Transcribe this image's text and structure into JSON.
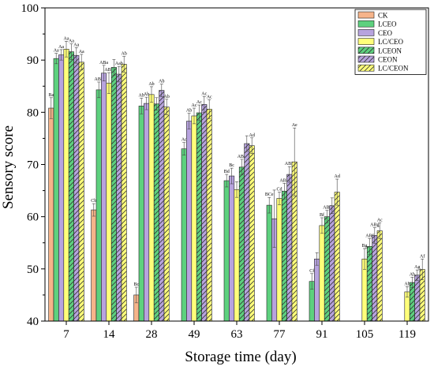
{
  "chart_data": {
    "type": "bar",
    "title": "",
    "xlabel": "Storage time (day)",
    "ylabel": "Sensory score",
    "ylim": [
      40,
      100
    ],
    "yticks": [
      40,
      50,
      60,
      70,
      80,
      90,
      100
    ],
    "categories": [
      "7",
      "14",
      "28",
      "49",
      "63",
      "77",
      "91",
      "105",
      "119"
    ],
    "legend_position": "top-right",
    "series": [
      {
        "name": "CK",
        "color": "#f6b48a",
        "hatch": "none",
        "values": [
          80.8,
          61.3,
          45.0,
          null,
          null,
          null,
          null,
          null,
          null
        ],
        "errors": [
          2.0,
          1.2,
          1.5,
          null,
          null,
          null,
          null,
          null,
          null
        ],
        "labels": [
          "Ba",
          "Cb",
          "Bc",
          "",
          "",
          "",
          "",
          "",
          ""
        ]
      },
      {
        "name": "LCEO",
        "color": "#5dd17e",
        "hatch": "none",
        "values": [
          90.3,
          84.3,
          81.2,
          73.0,
          66.9,
          62.2,
          47.6,
          null,
          null
        ],
        "errors": [
          1.0,
          1.5,
          1.5,
          1.2,
          1.2,
          1.5,
          1.5,
          null,
          null
        ],
        "labels": [
          "Aa",
          "ABb",
          "Ab",
          "Ac",
          "Bd",
          "BCe",
          "Cf",
          "",
          ""
        ]
      },
      {
        "name": "CEO",
        "color": "#b7a3de",
        "hatch": "none",
        "values": [
          91.0,
          87.5,
          81.7,
          78.3,
          67.8,
          59.6,
          51.9,
          null,
          null
        ],
        "errors": [
          1.0,
          1.5,
          1.2,
          1.5,
          1.5,
          5.5,
          1.2,
          null,
          null
        ],
        "labels": [
          "Aa",
          "ABa",
          "Ab",
          "Ab",
          "Bc",
          "",
          "",
          "",
          ""
        ]
      },
      {
        "name": "LC/CEO",
        "color": "#ffff7a",
        "hatch": "none",
        "values": [
          92.1,
          85.6,
          83.4,
          79.3,
          65.2,
          63.5,
          58.3,
          51.9,
          45.6
        ],
        "errors": [
          1.5,
          2.0,
          1.5,
          1.5,
          1.5,
          1.2,
          1.5,
          2.0,
          1.0
        ],
        "labels": [
          "Aa",
          "ABb",
          "Ab",
          "Ac",
          "",
          "Cd",
          "Bf",
          "Bg",
          "Ah"
        ]
      },
      {
        "name": "LCEON",
        "color": "#5dd17e",
        "hatch": "hatch",
        "values": [
          91.6,
          88.6,
          81.6,
          79.9,
          69.5,
          64.9,
          60.0,
          54.3,
          47.4
        ],
        "errors": [
          1.5,
          1.5,
          1.2,
          1.5,
          1.5,
          1.5,
          1.2,
          1.5,
          1.0
        ],
        "labels": [
          "Aa",
          "",
          "",
          "Ac",
          "ABd",
          "ABE",
          "ABf",
          "ABf",
          "Ah"
        ]
      },
      {
        "name": "CEON",
        "color": "#b7a3de",
        "hatch": "hatch",
        "values": [
          90.9,
          87.3,
          84.2,
          81.5,
          74.0,
          68.1,
          62.1,
          56.4,
          48.8
        ],
        "errors": [
          1.5,
          1.5,
          1.2,
          1.5,
          1.5,
          1.5,
          1.5,
          1.5,
          1.0
        ],
        "labels": [
          "Aa",
          "Aab",
          "Ab",
          "Ac",
          "",
          "ABE",
          "",
          "ABg",
          "Ag"
        ]
      },
      {
        "name": "LC/CEON",
        "color": "#ffff7a",
        "hatch": "hatch",
        "values": [
          89.6,
          89.2,
          81.0,
          80.6,
          73.6,
          70.5,
          64.7,
          57.3,
          49.9
        ],
        "errors": [
          1.5,
          1.5,
          1.5,
          1.8,
          1.5,
          6.5,
          2.5,
          1.5,
          2.0
        ],
        "labels": [
          "Aa",
          "Ab",
          "Ab",
          "Ac",
          "Ad",
          "Ae",
          "Ad",
          "Ac",
          "Af"
        ]
      }
    ]
  }
}
